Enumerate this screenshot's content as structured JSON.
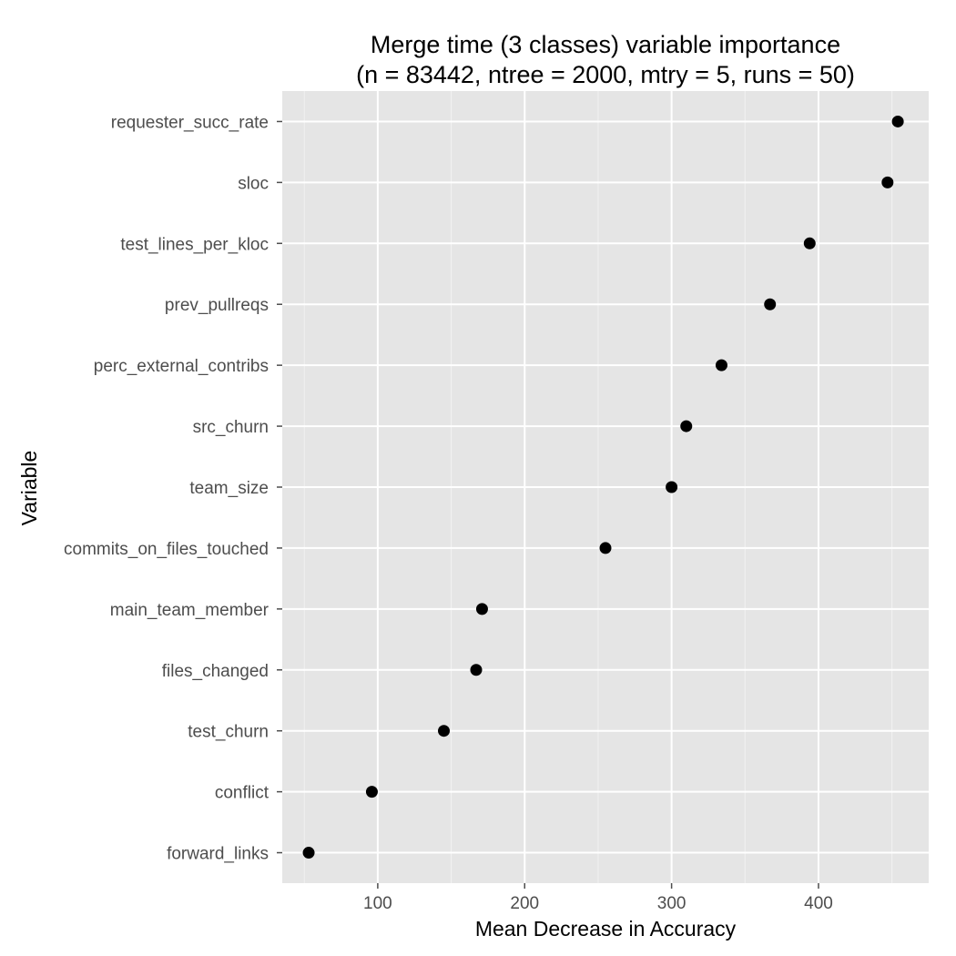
{
  "chart_data": {
    "type": "scatter",
    "title_line1": "Merge time (3 classes) variable importance",
    "title_line2": "(n = 83442, ntree = 2000, mtry = 5, runs = 50)",
    "xlabel": "Mean Decrease in Accuracy",
    "ylabel": "Variable",
    "xlim": [
      35,
      475
    ],
    "xticks": [
      100,
      200,
      300,
      400
    ],
    "xtick_labels": [
      "100",
      "200",
      "300",
      "400"
    ],
    "grid": true,
    "panel_color": "#e5e5e5",
    "point_color": "#000000",
    "points": [
      {
        "label": "requester_succ_rate",
        "value": 454
      },
      {
        "label": "sloc",
        "value": 447
      },
      {
        "label": "test_lines_per_kloc",
        "value": 394
      },
      {
        "label": "prev_pullreqs",
        "value": 367
      },
      {
        "label": "perc_external_contribs",
        "value": 334
      },
      {
        "label": "src_churn",
        "value": 310
      },
      {
        "label": "team_size",
        "value": 300
      },
      {
        "label": "commits_on_files_touched",
        "value": 255
      },
      {
        "label": "main_team_member",
        "value": 171
      },
      {
        "label": "files_changed",
        "value": 167
      },
      {
        "label": "test_churn",
        "value": 145
      },
      {
        "label": "conflict",
        "value": 96
      },
      {
        "label": "forward_links",
        "value": 53
      }
    ]
  }
}
